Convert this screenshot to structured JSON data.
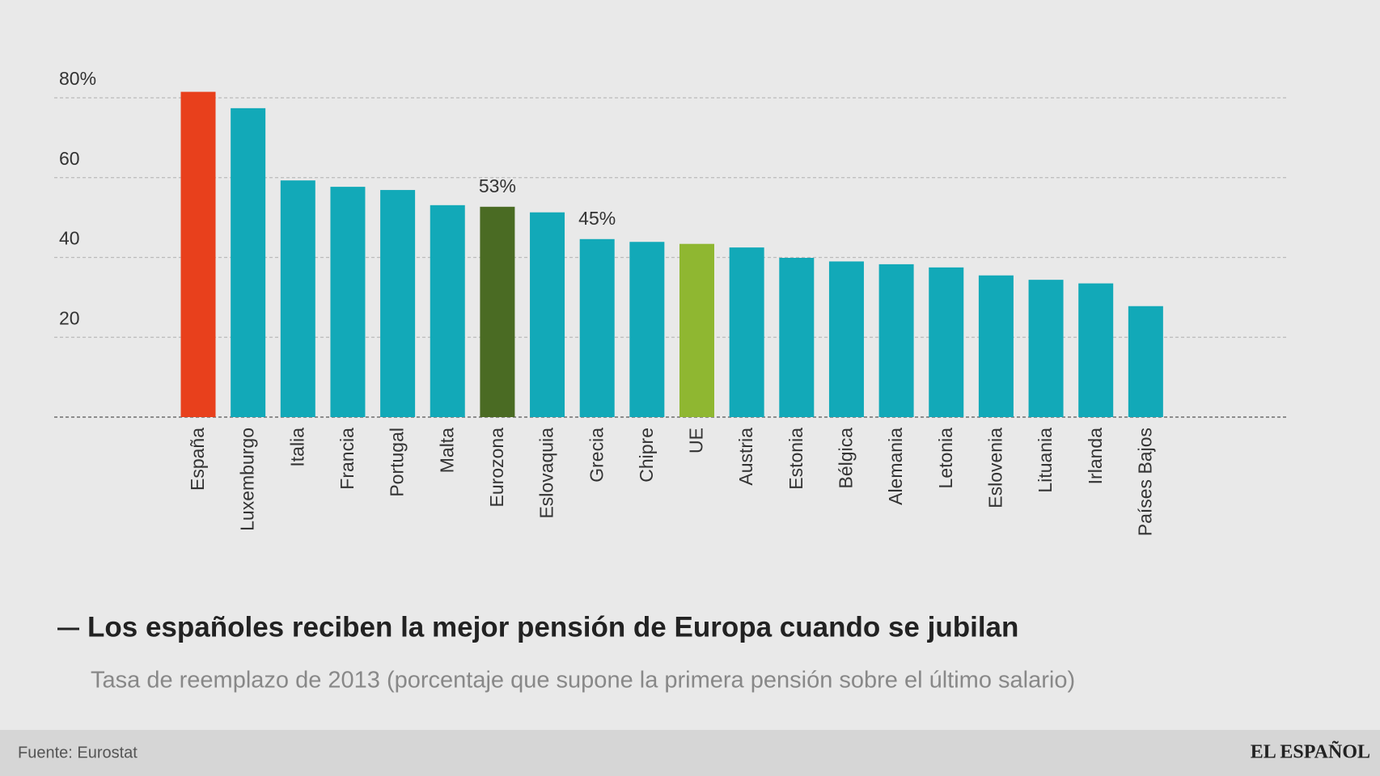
{
  "chart_data": {
    "type": "bar",
    "title": "Los españoles reciben la mejor pensión de Europa cuando se jubilan",
    "subtitle": "Tasa de reemplazo de 2013 (porcentaje que supone la primera pensión sobre el último salario)",
    "categories": [
      "España",
      "Luxemburgo",
      "Italia",
      "Francia",
      "Portugal",
      "Malta",
      "Eurozona",
      "Eslovaquia",
      "Grecia",
      "Chipre",
      "UE",
      "Austria",
      "Estonia",
      "Bélgica",
      "Alemania",
      "Letonia",
      "Eslovenia",
      "Lituania",
      "Irlanda",
      "Países Bajos"
    ],
    "values": [
      81.5,
      77.4,
      59.3,
      57.7,
      56.9,
      53.1,
      52.7,
      51.3,
      44.6,
      43.9,
      43.4,
      42.5,
      39.9,
      39.0,
      38.3,
      37.5,
      35.5,
      34.4,
      33.5,
      27.8
    ],
    "value_labels": [
      null,
      null,
      null,
      null,
      null,
      null,
      "53%",
      null,
      "45%",
      null,
      null,
      null,
      null,
      null,
      null,
      null,
      null,
      null,
      null,
      null
    ],
    "colors": [
      "#e8401c",
      "#12a9b8",
      "#12a9b8",
      "#12a9b8",
      "#12a9b8",
      "#12a9b8",
      "#4a6b23",
      "#12a9b8",
      "#12a9b8",
      "#12a9b8",
      "#8fb731",
      "#12a9b8",
      "#12a9b8",
      "#12a9b8",
      "#12a9b8",
      "#12a9b8",
      "#12a9b8",
      "#12a9b8",
      "#12a9b8",
      "#12a9b8"
    ],
    "ylim": [
      0,
      85
    ],
    "yticks": [
      {
        "value": 80,
        "label": "80%"
      },
      60,
      40,
      20
    ],
    "grid": true
  },
  "footer": {
    "source": "Fuente: Eurostat",
    "brand": "EL ESPAÑOL"
  }
}
